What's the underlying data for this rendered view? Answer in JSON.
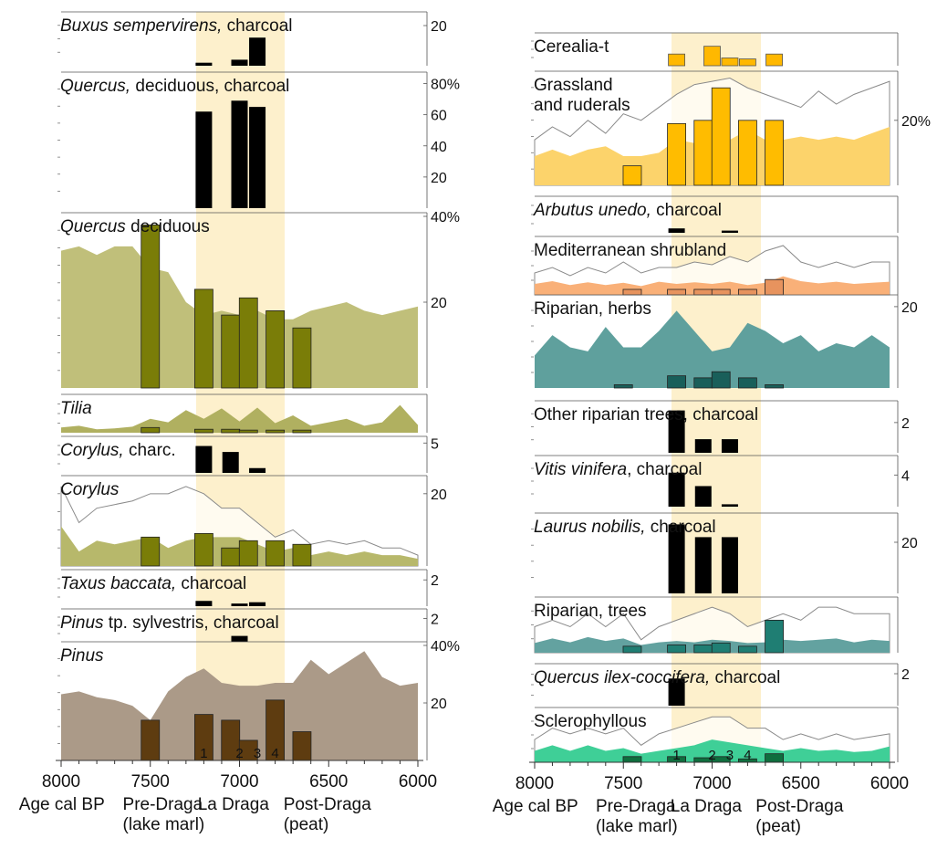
{
  "colors": {
    "band": "#fdf0cc",
    "bar_dark": "#000000",
    "olive_area": "#c0bf7a",
    "olive_bar": "#7a7d08",
    "olive_line": "#8f8e55",
    "corylus_area": "#b7b86b",
    "tilia_area": "#b0b060",
    "pinus_area": "#ab9a88",
    "pinus_bar": "#5e3c10",
    "pinus_line": "#8e7c6b",
    "cereal_bar": "#ffb800",
    "grass_area": "#fcd36b",
    "grass_bar": "#ffbc00",
    "med_area": "#f9b078",
    "med_bar": "#e7935e",
    "med_line": "#c98c5c",
    "rip_herb_area": "#5fa09d",
    "rip_herb_bar": "#195f5a",
    "rip_tree_area": "#63a2a0",
    "rip_tree_bar": "#1f7e73",
    "scler_area": "#3fcf97",
    "scler_bar": "#0f6e3e",
    "envelope": "#8a8a8a"
  },
  "phase_labels": {
    "age": "Age cal BP",
    "pre": "Pre-Draga",
    "pre_sub": "(lake marl)",
    "la": "La Draga",
    "post": "Post-Draga",
    "post_sub": "(peat)"
  },
  "chart_data": [
    {
      "type": "bar",
      "panel": "left",
      "title_italic": "Buxus sempervirens,",
      "title_rest": " charcoal",
      "x": [
        7200,
        7000,
        6900
      ],
      "values": [
        1.5,
        3,
        14
      ],
      "ylim": [
        0,
        25
      ],
      "tick_labels": [
        {
          "v": 20,
          "t": "20"
        }
      ],
      "color_key": "bar_dark"
    },
    {
      "type": "bar",
      "panel": "left",
      "title_italic": "Quercus,",
      "title_rest": " deciduous, charcoal",
      "x": [
        7200,
        7000,
        6900
      ],
      "values": [
        62,
        69,
        65
      ],
      "ylim": [
        0,
        85
      ],
      "tick_labels": [
        {
          "v": 80,
          "t": "80%"
        },
        {
          "v": 60,
          "t": "60"
        },
        {
          "v": 40,
          "t": "40"
        },
        {
          "v": 20,
          "t": "20"
        }
      ],
      "color_key": "bar_dark"
    },
    {
      "type": "area",
      "panel": "left",
      "title_italic": "Quercus",
      "title_rest": " deciduous",
      "x": [
        8000,
        7900,
        7800,
        7700,
        7600,
        7500,
        7400,
        7300,
        7200,
        7100,
        7000,
        6900,
        6800,
        6700,
        6600,
        6500,
        6400,
        6300,
        6200,
        6100,
        6000
      ],
      "area": [
        32,
        33,
        31,
        33,
        33,
        28,
        27,
        20,
        17,
        18,
        17,
        18,
        16,
        16,
        18,
        19,
        20,
        18,
        17,
        18,
        19
      ],
      "bars": [
        {
          "x": 7500,
          "v": 38
        },
        {
          "x": 7200,
          "v": 23
        },
        {
          "x": 7050,
          "v": 17
        },
        {
          "x": 6950,
          "v": 21
        },
        {
          "x": 6800,
          "v": 18
        },
        {
          "x": 6650,
          "v": 14
        }
      ],
      "ylim": [
        0,
        40
      ],
      "tick_labels": [
        {
          "v": 40,
          "t": "40%"
        },
        {
          "v": 20,
          "t": "20"
        }
      ],
      "area_key": "olive_area",
      "bar_key": "olive_bar"
    },
    {
      "type": "area",
      "panel": "left",
      "title_italic": "Tilia",
      "title_rest": "",
      "x": [
        8000,
        7900,
        7800,
        7700,
        7600,
        7500,
        7400,
        7300,
        7200,
        7100,
        7000,
        6900,
        6800,
        6700,
        6600,
        6500,
        6400,
        6300,
        6200,
        6100,
        6000
      ],
      "area": [
        0.6,
        0.8,
        0.4,
        0.5,
        0.7,
        1.6,
        1.2,
        2.6,
        1.6,
        2.8,
        1.3,
        2.9,
        1.1,
        2.0,
        0.8,
        1.2,
        1.6,
        0.8,
        1.2,
        3.2,
        0.9
      ],
      "bars": [
        {
          "x": 7500,
          "v": 0.6
        },
        {
          "x": 7200,
          "v": 0.4
        },
        {
          "x": 7050,
          "v": 0.4
        },
        {
          "x": 6950,
          "v": 0.3
        },
        {
          "x": 6800,
          "v": 0.3
        },
        {
          "x": 6650,
          "v": 0.3
        }
      ],
      "ylim": [
        0,
        4
      ],
      "tick_labels": [],
      "area_key": "tilia_area",
      "bar_key": "olive_bar"
    },
    {
      "type": "bar",
      "panel": "left",
      "title_italic": "Corylus,",
      "title_rest": " charc.",
      "x": [
        7200,
        7050,
        6900
      ],
      "values": [
        4.5,
        3.5,
        0.8
      ],
      "ylim": [
        0,
        5.5
      ],
      "tick_labels": [
        {
          "v": 5,
          "t": "5"
        }
      ],
      "color_key": "bar_dark"
    },
    {
      "type": "area",
      "panel": "left",
      "title_italic": "Corylus",
      "title_rest": "",
      "x": [
        8000,
        7900,
        7800,
        7700,
        7600,
        7500,
        7400,
        7300,
        7200,
        7100,
        7000,
        6900,
        6800,
        6700,
        6600,
        6500,
        6400,
        6300,
        6200,
        6100,
        6000
      ],
      "area": [
        11,
        4,
        7,
        6,
        7,
        8,
        5,
        7,
        8,
        8,
        8,
        6,
        4,
        5,
        3,
        4,
        3,
        4,
        3,
        3,
        2
      ],
      "envelope": [
        22,
        12,
        16,
        17,
        18,
        20,
        20,
        22,
        20,
        16,
        16,
        12,
        8,
        10,
        6,
        7,
        6,
        7,
        5,
        5,
        3
      ],
      "bars": [
        {
          "x": 7500,
          "v": 8
        },
        {
          "x": 7200,
          "v": 9
        },
        {
          "x": 7050,
          "v": 5
        },
        {
          "x": 6950,
          "v": 7
        },
        {
          "x": 6800,
          "v": 7
        },
        {
          "x": 6650,
          "v": 6
        }
      ],
      "ylim": [
        0,
        24
      ],
      "tick_labels": [
        {
          "v": 20,
          "t": "20"
        }
      ],
      "area_key": "corylus_area",
      "bar_key": "olive_bar"
    },
    {
      "type": "bar",
      "panel": "left",
      "title_italic": "Taxus baccata,",
      "title_rest": " charcoal",
      "x": [
        7200,
        7000,
        6900
      ],
      "values": [
        0.4,
        0.2,
        0.3
      ],
      "ylim": [
        0,
        2.5
      ],
      "tick_labels": [
        {
          "v": 2,
          "t": "2"
        }
      ],
      "color_key": "bar_dark"
    },
    {
      "type": "bar",
      "panel": "left",
      "title_italic": "Pinus",
      "title_rest": " tp. sylvestris, charcoal",
      "title_mixed": true,
      "x": [
        7000
      ],
      "values": [
        0.5
      ],
      "ylim": [
        0,
        2.5
      ],
      "tick_labels": [
        {
          "v": 2,
          "t": "2"
        }
      ],
      "color_key": "bar_dark"
    },
    {
      "type": "area",
      "panel": "left",
      "title_italic": "Pinus",
      "title_rest": "",
      "x": [
        8000,
        7900,
        7800,
        7700,
        7600,
        7500,
        7400,
        7300,
        7200,
        7100,
        7000,
        6900,
        6800,
        6700,
        6600,
        6500,
        6400,
        6300,
        6200,
        6100,
        6000
      ],
      "area": [
        23,
        24,
        22,
        21,
        19,
        14,
        24,
        29,
        32,
        27,
        26,
        26,
        27,
        27,
        35,
        30,
        34,
        38,
        29,
        26,
        27
      ],
      "bars": [
        {
          "x": 7500,
          "v": 14
        },
        {
          "x": 7200,
          "v": 16
        },
        {
          "x": 7050,
          "v": 14
        },
        {
          "x": 6950,
          "v": 7
        },
        {
          "x": 6800,
          "v": 21
        },
        {
          "x": 6650,
          "v": 10
        }
      ],
      "ylim": [
        0,
        40
      ],
      "tick_labels": [
        {
          "v": 40,
          "t": "40%"
        },
        {
          "v": 20,
          "t": "20"
        }
      ],
      "area_key": "pinus_area",
      "bar_key": "pinus_bar"
    },
    {
      "type": "bar",
      "panel": "right",
      "title_italic": "",
      "title_rest": "Cerealia-t",
      "x": [
        7200,
        7000,
        6900,
        6800,
        6650
      ],
      "values": [
        1.2,
        2.0,
        0.8,
        0.7,
        1.2
      ],
      "ylim": [
        0,
        3
      ],
      "tick_labels": [],
      "color_key": "cereal_bar",
      "outline": true
    },
    {
      "type": "area",
      "panel": "right",
      "title_italic": "",
      "title_rest": "Grassland",
      "title_rest2": "and ruderals",
      "x": [
        8000,
        7900,
        7800,
        7700,
        7600,
        7500,
        7400,
        7300,
        7200,
        7100,
        7000,
        6900,
        6800,
        6700,
        6600,
        6500,
        6400,
        6300,
        6200,
        6100,
        6000
      ],
      "area": [
        9,
        11,
        9,
        11,
        12,
        9,
        9,
        10,
        14,
        13,
        16,
        14,
        17,
        14,
        14,
        15,
        14,
        15,
        14,
        16,
        18
      ],
      "envelope": [
        14,
        18,
        15,
        20,
        16,
        22,
        20,
        24,
        28,
        31,
        32,
        33,
        30,
        28,
        26,
        24,
        29,
        25,
        28,
        30,
        32
      ],
      "bars": [
        {
          "x": 7450,
          "v": 6
        },
        {
          "x": 7200,
          "v": 19
        },
        {
          "x": 7050,
          "v": 20
        },
        {
          "x": 6950,
          "v": 30
        },
        {
          "x": 6800,
          "v": 20
        },
        {
          "x": 6650,
          "v": 20
        }
      ],
      "ylim": [
        0,
        34
      ],
      "tick_labels": [
        {
          "v": 20,
          "t": "20%"
        }
      ],
      "area_key": "grass_area",
      "bar_key": "grass_bar"
    },
    {
      "type": "bar",
      "panel": "right",
      "title_italic": "Arbutus unedo,",
      "title_rest": " charcoal",
      "x": [
        7200,
        6900
      ],
      "values": [
        0.4,
        0.2
      ],
      "ylim": [
        0,
        3
      ],
      "tick_labels": [],
      "color_key": "bar_dark"
    },
    {
      "type": "area",
      "panel": "right",
      "title_italic": "",
      "title_rest": "Mediterranean shrubland",
      "x": [
        8000,
        7900,
        7800,
        7700,
        7600,
        7500,
        7400,
        7300,
        7200,
        7100,
        7000,
        6900,
        6800,
        6700,
        6600,
        6500,
        6400,
        6300,
        6200,
        6100,
        6000
      ],
      "area": [
        2,
        2.5,
        1.8,
        2.3,
        1.8,
        2.2,
        1.6,
        2.4,
        2.0,
        2.3,
        2.0,
        2.4,
        1.8,
        2.2,
        3.4,
        2.5,
        2.1,
        2.4,
        2.0,
        2.2,
        2.4
      ],
      "envelope": [
        4,
        5,
        3.5,
        5,
        4,
        6,
        4,
        5,
        5,
        6,
        5.5,
        7,
        6,
        8,
        9,
        6,
        5,
        6,
        5,
        6,
        6
      ],
      "bars": [
        {
          "x": 7450,
          "v": 1
        },
        {
          "x": 7200,
          "v": 1
        },
        {
          "x": 7050,
          "v": 1
        },
        {
          "x": 6950,
          "v": 1
        },
        {
          "x": 6800,
          "v": 1
        },
        {
          "x": 6650,
          "v": 2.8
        }
      ],
      "ylim": [
        0,
        10
      ],
      "tick_labels": [],
      "area_key": "med_area",
      "bar_key": "med_bar"
    },
    {
      "type": "area",
      "panel": "right",
      "title_italic": "",
      "title_rest": "Riparian, herbs",
      "x": [
        8000,
        7900,
        7800,
        7700,
        7600,
        7500,
        7400,
        7300,
        7200,
        7100,
        7000,
        6900,
        6800,
        6700,
        6600,
        6500,
        6400,
        6300,
        6200,
        6100,
        6000
      ],
      "area": [
        8,
        13,
        10,
        9,
        15,
        10,
        10,
        14,
        19,
        14,
        9,
        10,
        16,
        14,
        11,
        13,
        9,
        11,
        10,
        13,
        10
      ],
      "bars": [
        {
          "x": 7500,
          "v": 0.8
        },
        {
          "x": 7200,
          "v": 3
        },
        {
          "x": 7050,
          "v": 2.5
        },
        {
          "x": 6950,
          "v": 4
        },
        {
          "x": 6800,
          "v": 2.5
        },
        {
          "x": 6650,
          "v": 0.8
        }
      ],
      "ylim": [
        0,
        22
      ],
      "tick_labels": [
        {
          "v": 20,
          "t": "20"
        }
      ],
      "area_key": "rip_herb_area",
      "bar_key": "rip_herb_bar"
    },
    {
      "type": "bar",
      "panel": "right",
      "title_italic": "",
      "title_rest": "Other riparian trees, charcoal",
      "x": [
        7200,
        7050,
        6900
      ],
      "values": [
        2.8,
        0.9,
        0.9
      ],
      "ylim": [
        0,
        3.2
      ],
      "tick_labels": [
        {
          "v": 2,
          "t": "2"
        }
      ],
      "color_key": "bar_dark"
    },
    {
      "type": "bar",
      "panel": "right",
      "title_italic": "Vitis vinifera",
      "title_rest": ", charcoal",
      "x": [
        7200,
        7050,
        6900
      ],
      "values": [
        4.3,
        2.6,
        0.3
      ],
      "ylim": [
        0,
        6
      ],
      "tick_labels": [
        {
          "v": 4,
          "t": "4"
        }
      ],
      "color_key": "bar_dark"
    },
    {
      "type": "bar",
      "panel": "right",
      "title_italic": "Laurus nobilis,",
      "title_rest": " charcoal",
      "x": [
        7200,
        7050,
        6900
      ],
      "values": [
        27,
        22,
        22
      ],
      "ylim": [
        0,
        30
      ],
      "tick_labels": [
        {
          "v": 20,
          "t": "20"
        }
      ],
      "color_key": "bar_dark"
    },
    {
      "type": "area",
      "panel": "right",
      "title_italic": "",
      "title_rest": "Riparian, trees",
      "x": [
        8000,
        7900,
        7800,
        7700,
        7600,
        7500,
        7400,
        7300,
        7200,
        7100,
        7000,
        6900,
        6800,
        6700,
        6600,
        6500,
        6400,
        6300,
        6200,
        6100,
        6000
      ],
      "area": [
        1.5,
        2.2,
        1.6,
        2.4,
        1.8,
        2.2,
        1.2,
        1.6,
        1.8,
        1.6,
        2.0,
        1.8,
        1.5,
        1.6,
        2.0,
        1.8,
        2.0,
        2.2,
        1.6,
        2.0,
        1.8
      ],
      "envelope": [
        4,
        5,
        4,
        6,
        4,
        6,
        2,
        4,
        5,
        6,
        7,
        6,
        4,
        5,
        6,
        5,
        7,
        7,
        6,
        6,
        6
      ],
      "bars": [
        {
          "x": 7450,
          "v": 1
        },
        {
          "x": 7200,
          "v": 1.2
        },
        {
          "x": 7050,
          "v": 1.2
        },
        {
          "x": 6950,
          "v": 1.5
        },
        {
          "x": 6800,
          "v": 1
        },
        {
          "x": 6650,
          "v": 5
        }
      ],
      "ylim": [
        0,
        8
      ],
      "tick_labels": [],
      "area_key": "rip_tree_area",
      "bar_key": "rip_tree_bar"
    },
    {
      "type": "bar",
      "panel": "right",
      "title_italic": "Quercus ilex-coccifera,",
      "title_rest": " charcoal",
      "x": [
        7200
      ],
      "values": [
        1.7
      ],
      "ylim": [
        0,
        2.4
      ],
      "tick_labels": [
        {
          "v": 2,
          "t": "2"
        }
      ],
      "color_key": "bar_dark"
    },
    {
      "type": "area",
      "panel": "right",
      "title_italic": "",
      "title_rest": "Sclerophyllous",
      "x": [
        8000,
        7900,
        7800,
        7700,
        7600,
        7500,
        7400,
        7300,
        7200,
        7100,
        7000,
        6900,
        6800,
        6700,
        6600,
        6500,
        6400,
        6300,
        6200,
        6100,
        6000
      ],
      "area": [
        2,
        3,
        2,
        3,
        2,
        2.5,
        1.5,
        2,
        2.5,
        3,
        4,
        3.5,
        3,
        2.5,
        2,
        2.5,
        2,
        2.2,
        1.8,
        2,
        2.8
      ],
      "envelope": [
        4,
        6,
        5,
        6,
        5,
        6,
        3,
        5,
        6,
        7,
        8,
        8,
        6,
        6,
        4,
        5,
        4,
        5,
        4,
        4.5,
        5
      ],
      "bars": [
        {
          "x": 7450,
          "v": 1
        },
        {
          "x": 7200,
          "v": 1
        },
        {
          "x": 7050,
          "v": 0.8
        },
        {
          "x": 6950,
          "v": 1
        },
        {
          "x": 6800,
          "v": 0.6
        },
        {
          "x": 6650,
          "v": 1.5
        }
      ],
      "ylim": [
        0,
        9
      ],
      "tick_labels": [],
      "area_key": "scler_area",
      "bar_key": "scler_bar"
    }
  ],
  "axis": {
    "ticks": [
      8000,
      7500,
      7000,
      6500,
      6000
    ],
    "tick_labels": [
      "8000",
      "7500",
      "7000",
      "6500",
      "6000"
    ],
    "phase_numbers": [
      {
        "x": 7200,
        "t": "1"
      },
      {
        "x": 7000,
        "t": "2"
      },
      {
        "x": 6900,
        "t": "3"
      },
      {
        "x": 6800,
        "t": "4"
      }
    ]
  }
}
